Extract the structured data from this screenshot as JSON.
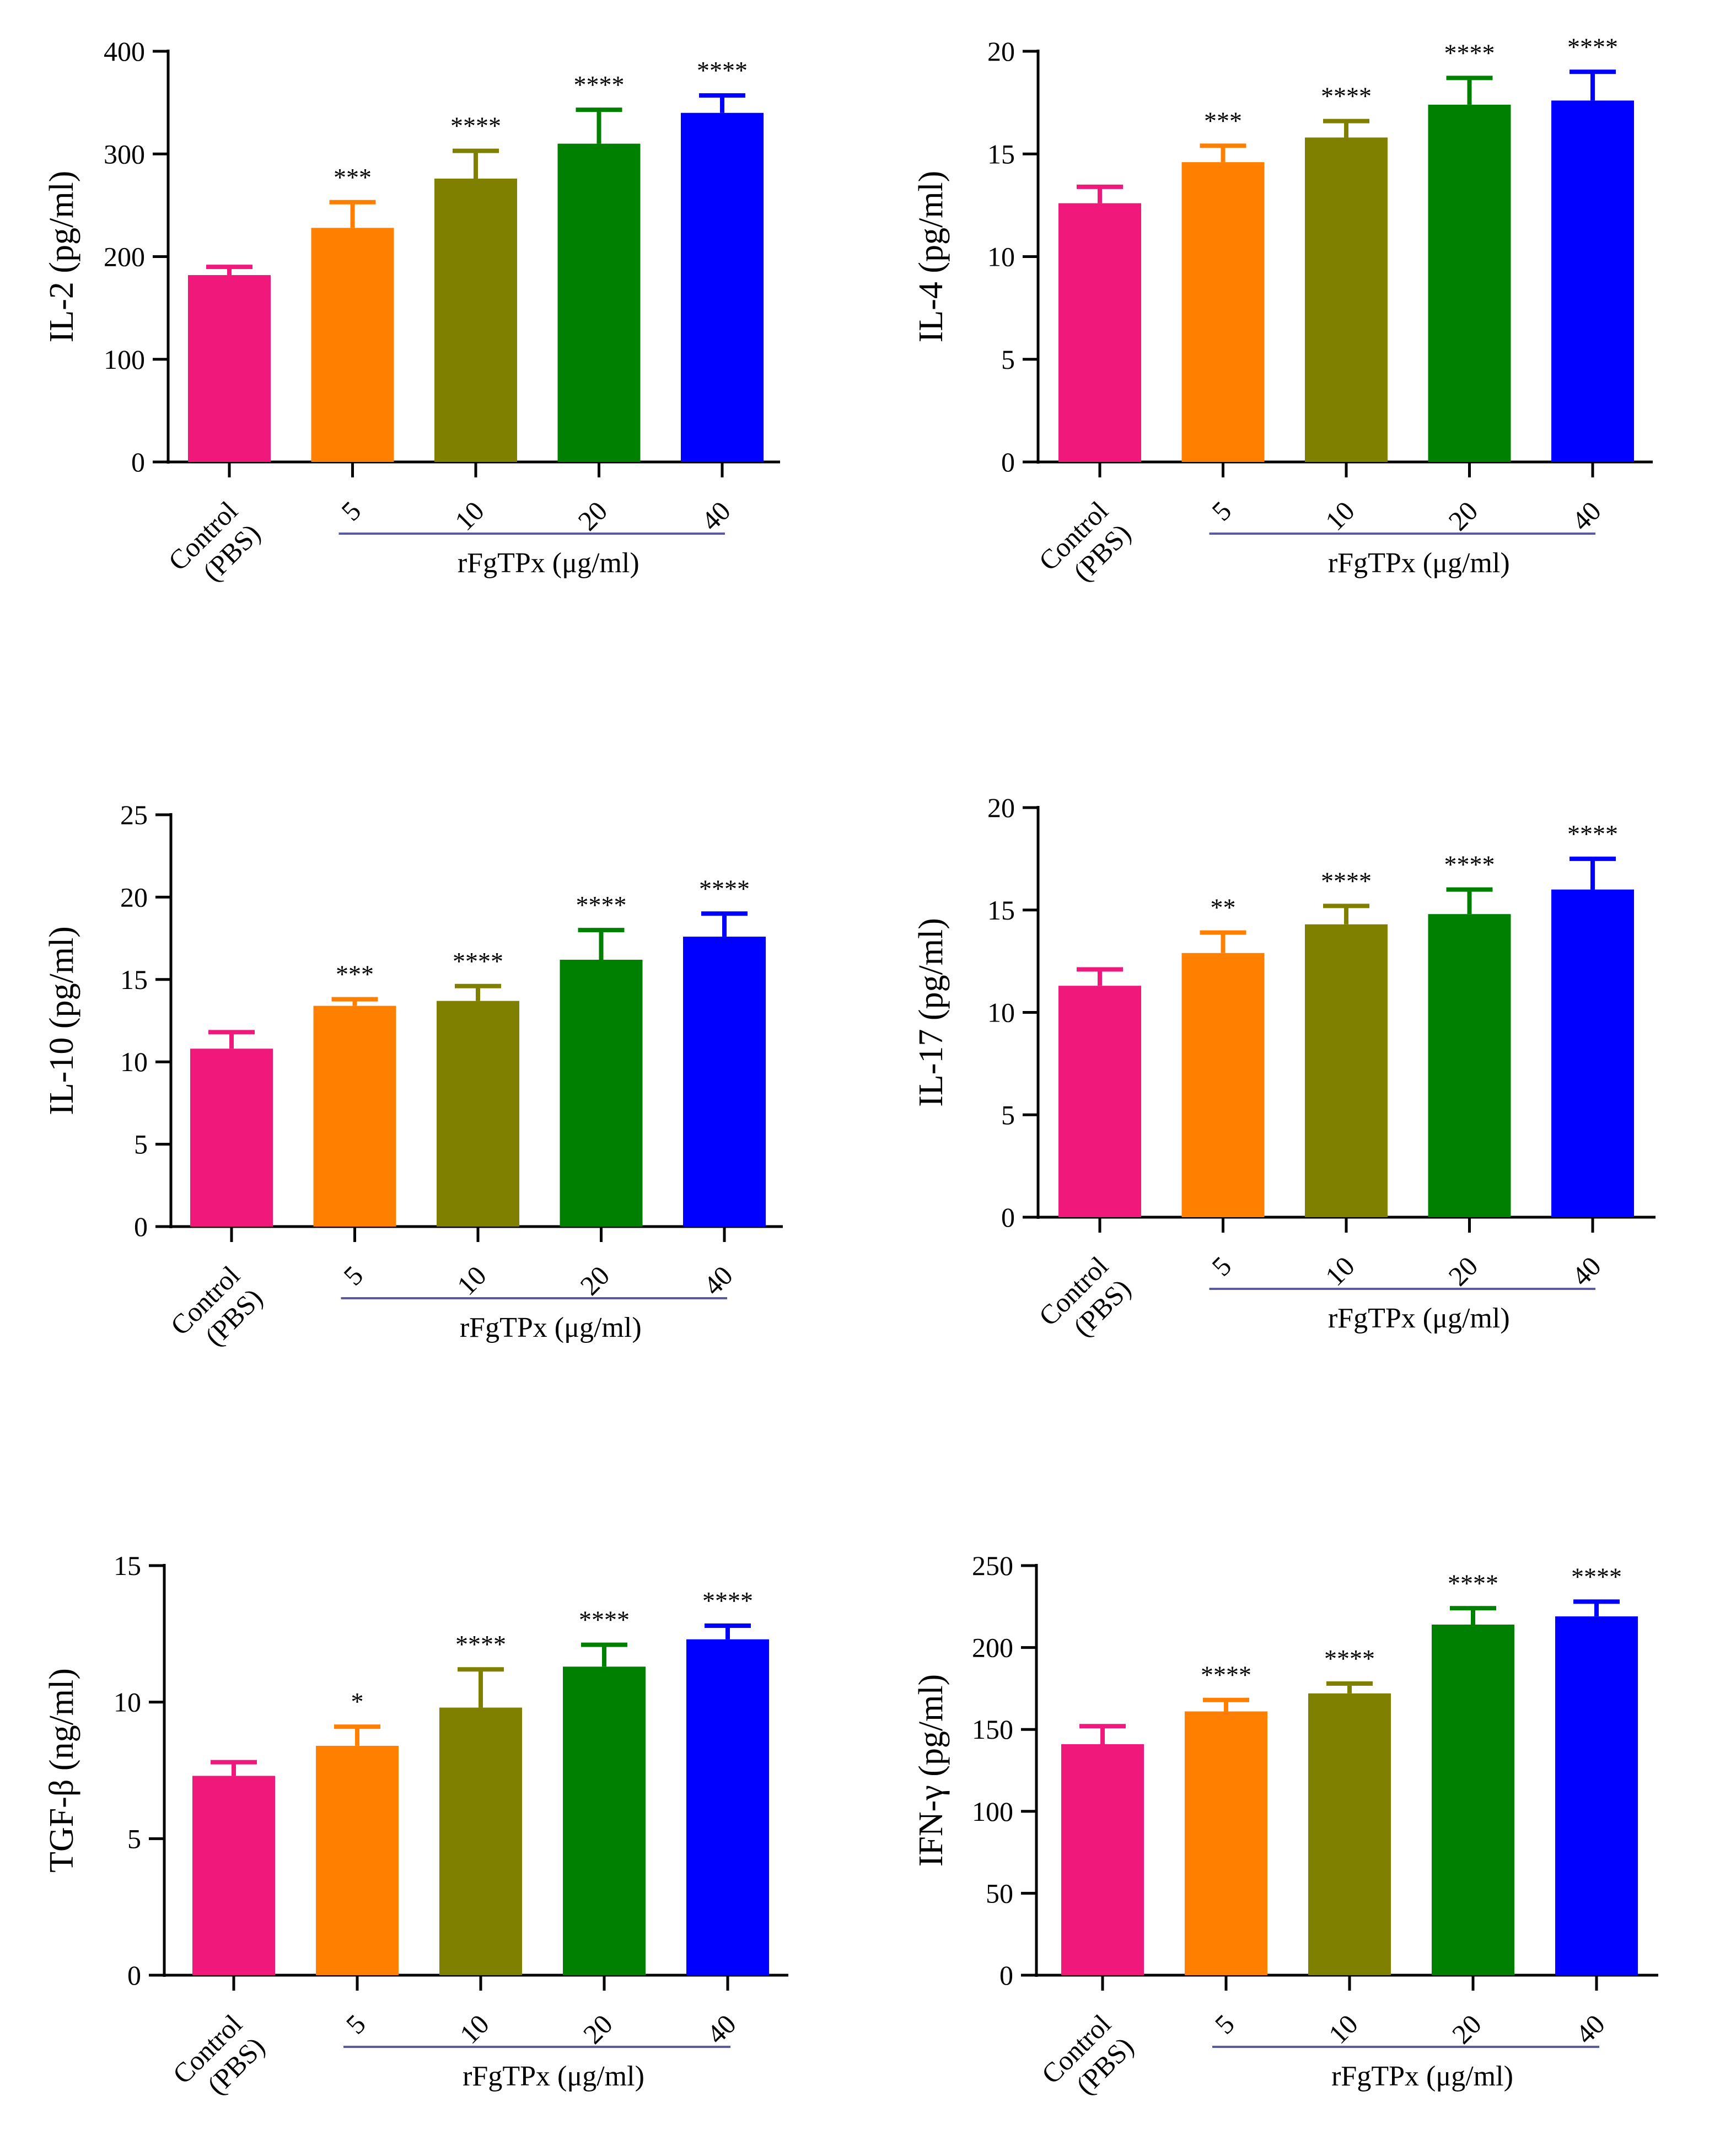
{
  "chart_data": [
    {
      "type": "bar",
      "ylabel": "IL-2 (pg/ml)",
      "ylim": [
        0,
        400
      ],
      "yticks": [
        0,
        100,
        200,
        300,
        400
      ],
      "categories": [
        "Control\n(PBS)",
        "5",
        "10",
        "20",
        "40"
      ],
      "values": [
        182,
        228,
        276,
        310,
        340
      ],
      "errors": [
        8,
        25,
        27,
        33,
        17
      ],
      "significance": [
        "",
        "***",
        "****",
        "****",
        "****"
      ],
      "group_label": "rFgTPx (μg/ml)"
    },
    {
      "type": "bar",
      "ylabel": "IL-4 (pg/ml)",
      "ylim": [
        0,
        20
      ],
      "yticks": [
        0,
        5,
        10,
        15,
        20
      ],
      "categories": [
        "Control\n(PBS)",
        "5",
        "10",
        "20",
        "40"
      ],
      "values": [
        12.6,
        14.6,
        15.8,
        17.4,
        17.6
      ],
      "errors": [
        0.8,
        0.8,
        0.8,
        1.3,
        1.4
      ],
      "significance": [
        "",
        "***",
        "****",
        "****",
        "****"
      ],
      "group_label": "rFgTPx (μg/ml)"
    },
    {
      "type": "bar",
      "ylabel": "IL-10 (pg/ml)",
      "ylim": [
        0,
        25
      ],
      "yticks": [
        0,
        5,
        10,
        15,
        20,
        25
      ],
      "categories": [
        "Control\n(PBS)",
        "5",
        "10",
        "20",
        "40"
      ],
      "values": [
        10.8,
        13.4,
        13.7,
        16.2,
        17.6
      ],
      "errors": [
        1.0,
        0.4,
        0.9,
        1.8,
        1.4
      ],
      "significance": [
        "",
        "***",
        "****",
        "****",
        "****"
      ],
      "group_label": "rFgTPx (μg/ml)"
    },
    {
      "type": "bar",
      "ylabel": "IL-17 (pg/ml)",
      "ylim": [
        0,
        20
      ],
      "yticks": [
        0,
        5,
        10,
        15,
        20
      ],
      "categories": [
        "Control\n(PBS)",
        "5",
        "10",
        "20",
        "40"
      ],
      "values": [
        11.3,
        12.9,
        14.3,
        14.8,
        16.0
      ],
      "errors": [
        0.8,
        1.0,
        0.9,
        1.2,
        1.5
      ],
      "significance": [
        "",
        "**",
        "****",
        "****",
        "****"
      ],
      "group_label": "rFgTPx (μg/ml)"
    },
    {
      "type": "bar",
      "ylabel": "TGF-β (ng/ml)",
      "ylim": [
        0,
        15
      ],
      "yticks": [
        0,
        5,
        10,
        15
      ],
      "categories": [
        "Control\n(PBS)",
        "5",
        "10",
        "20",
        "40"
      ],
      "values": [
        7.3,
        8.4,
        9.8,
        11.3,
        12.3
      ],
      "errors": [
        0.5,
        0.7,
        1.4,
        0.8,
        0.5
      ],
      "significance": [
        "",
        "*",
        "****",
        "****",
        "****"
      ],
      "group_label": "rFgTPx (μg/ml)"
    },
    {
      "type": "bar",
      "ylabel": "IFN-γ (pg/ml)",
      "ylim": [
        0,
        250
      ],
      "yticks": [
        0,
        50,
        100,
        150,
        200,
        250
      ],
      "categories": [
        "Control\n(PBS)",
        "5",
        "10",
        "20",
        "40"
      ],
      "values": [
        141,
        161,
        172,
        214,
        219
      ],
      "errors": [
        11,
        7,
        6,
        10,
        9
      ],
      "significance": [
        "",
        "****",
        "****",
        "****",
        "****"
      ],
      "group_label": "rFgTPx (μg/ml)"
    }
  ],
  "colors": {
    "bars": [
      "#f0187a",
      "#ff8000",
      "#808000",
      "#008000",
      "#0000ff"
    ],
    "axis": "#000000",
    "group_line": "#5a5aa0"
  }
}
